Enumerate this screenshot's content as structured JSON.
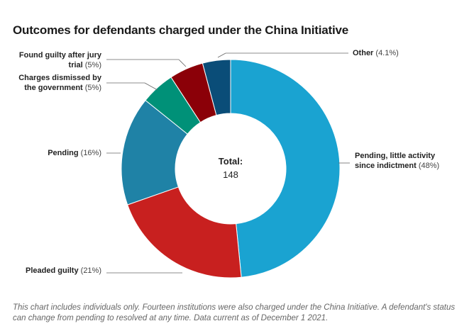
{
  "title": "Outcomes for defendants charged under the China Initiative",
  "chart_data": {
    "type": "pie",
    "variant": "donut",
    "title": "Outcomes for defendants charged under the China Initiative",
    "center": {
      "label": "Total:",
      "value": "148"
    },
    "slices": [
      {
        "name": "Pending, little activity since indictment",
        "value": 48,
        "pct_text": "(48%)",
        "line1": "Pending, little activity",
        "line2": "since indictment",
        "color": "#1aa3d1"
      },
      {
        "name": "Pleaded guilty",
        "value": 21,
        "pct_text": "(21%)",
        "line1": "Pleaded guilty",
        "line2": "",
        "color": "#c8201f"
      },
      {
        "name": "Pending",
        "value": 16,
        "pct_text": "(16%)",
        "line1": "Pending",
        "line2": "",
        "color": "#1f82a6"
      },
      {
        "name": "Charges dismissed by the government",
        "value": 5,
        "pct_text": "(5%)",
        "line1": "Charges dismissed by",
        "line2": "the government",
        "color": "#009178"
      },
      {
        "name": "Found guilty after jury trial",
        "value": 5,
        "pct_text": "(5%)",
        "line1": "Found guilty after jury",
        "line2": "trial",
        "color": "#8b0008"
      },
      {
        "name": "Other",
        "value": 4.1,
        "pct_text": "(4.1%)",
        "line1": "Other",
        "line2": "",
        "color": "#0a4d78"
      }
    ]
  },
  "footnote": "This chart includes individuals only. Fourteen institutions were also charged under the China Initiative. A defendant's status can change from pending to resolved at any time. Data current as of December 1 2021."
}
